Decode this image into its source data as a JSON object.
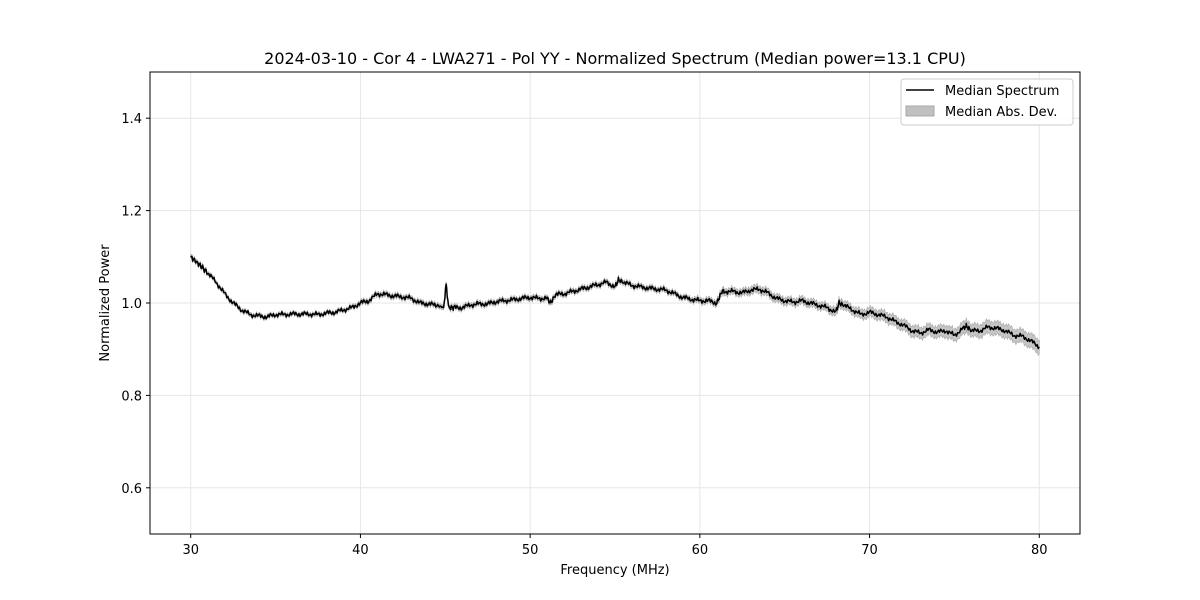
{
  "chart_data": {
    "type": "line",
    "title": "2024-03-10 - Cor 4 - LWA271 - Pol YY - Normalized Spectrum (Median power=13.1 CPU)",
    "xlabel": "Frequency (MHz)",
    "ylabel": "Normalized Power",
    "xlim": [
      27.6,
      82.4
    ],
    "ylim": [
      0.5,
      1.5
    ],
    "xticks": [
      30,
      40,
      50,
      60,
      70,
      80
    ],
    "xtick_labels": [
      "30",
      "40",
      "50",
      "60",
      "70",
      "80"
    ],
    "yticks": [
      0.6,
      0.8,
      1.0,
      1.2,
      1.4
    ],
    "ytick_labels": [
      "0.6",
      "0.8",
      "1.0",
      "1.2",
      "1.4"
    ],
    "grid": true,
    "legend": {
      "location": "top-right",
      "entries": [
        "Median Spectrum",
        "Median Abs. Dev."
      ]
    },
    "series": [
      {
        "name": "Median Spectrum",
        "color": "#000000",
        "x": [
          30,
          30.3,
          30.6,
          31,
          31.5,
          32,
          32.5,
          33,
          33.5,
          34,
          34.5,
          35,
          35.5,
          36,
          36.5,
          37,
          37.5,
          38,
          38.5,
          39,
          39.5,
          40,
          40.5,
          41,
          41.5,
          42,
          42.5,
          43,
          43.5,
          44,
          44.5,
          44.9,
          45.05,
          45.2,
          45.5,
          46,
          46.5,
          47,
          47.5,
          48,
          48.5,
          49,
          49.5,
          50,
          50.5,
          51,
          51.2,
          51.5,
          52,
          52.5,
          53,
          53.5,
          54,
          54.5,
          55,
          55.2,
          55.5,
          56,
          56.5,
          57,
          57.5,
          58,
          58.5,
          59,
          59.5,
          60,
          60.5,
          61,
          61.3,
          61.5,
          62,
          62.5,
          63,
          63.5,
          64,
          64.5,
          65,
          65.5,
          66,
          66.5,
          67,
          67.5,
          68,
          68.2,
          68.5,
          69,
          69.5,
          70,
          70.5,
          71,
          71.5,
          72,
          72.5,
          73,
          73.5,
          74,
          74.5,
          75,
          75.5,
          75.7,
          76,
          76.5,
          77,
          77.5,
          78,
          78.5,
          79,
          79.5,
          80
        ],
        "y": [
          1.1,
          1.09,
          1.08,
          1.065,
          1.045,
          1.02,
          1.0,
          0.985,
          0.975,
          0.972,
          0.97,
          0.975,
          0.975,
          0.976,
          0.976,
          0.976,
          0.975,
          0.978,
          0.98,
          0.985,
          0.99,
          1.0,
          1.005,
          1.02,
          1.018,
          1.015,
          1.013,
          1.01,
          1.0,
          0.998,
          0.995,
          0.99,
          1.04,
          0.99,
          0.99,
          0.99,
          0.996,
          0.998,
          0.998,
          1.003,
          1.005,
          1.007,
          1.01,
          1.012,
          1.01,
          1.01,
          1.0,
          1.018,
          1.02,
          1.025,
          1.03,
          1.035,
          1.04,
          1.045,
          1.035,
          1.05,
          1.045,
          1.038,
          1.035,
          1.032,
          1.03,
          1.028,
          1.02,
          1.012,
          1.008,
          1.005,
          1.005,
          1.0,
          1.025,
          1.025,
          1.025,
          1.022,
          1.028,
          1.03,
          1.022,
          1.01,
          1.005,
          1.002,
          1.005,
          1.0,
          0.995,
          0.99,
          0.98,
          1.0,
          0.995,
          0.985,
          0.975,
          0.98,
          0.975,
          0.97,
          0.96,
          0.952,
          0.94,
          0.935,
          0.942,
          0.937,
          0.94,
          0.93,
          0.945,
          0.95,
          0.94,
          0.94,
          0.948,
          0.945,
          0.94,
          0.93,
          0.928,
          0.918,
          0.905
        ],
        "mad": [
          0.004,
          0.004,
          0.004,
          0.004,
          0.004,
          0.004,
          0.004,
          0.004,
          0.004,
          0.004,
          0.004,
          0.004,
          0.004,
          0.004,
          0.004,
          0.004,
          0.004,
          0.004,
          0.004,
          0.004,
          0.004,
          0.005,
          0.005,
          0.005,
          0.005,
          0.005,
          0.005,
          0.005,
          0.005,
          0.005,
          0.005,
          0.005,
          0.005,
          0.005,
          0.005,
          0.005,
          0.005,
          0.005,
          0.005,
          0.005,
          0.005,
          0.005,
          0.005,
          0.005,
          0.005,
          0.005,
          0.005,
          0.005,
          0.005,
          0.005,
          0.005,
          0.005,
          0.005,
          0.005,
          0.005,
          0.005,
          0.005,
          0.005,
          0.005,
          0.005,
          0.005,
          0.005,
          0.005,
          0.005,
          0.005,
          0.006,
          0.006,
          0.006,
          0.007,
          0.007,
          0.007,
          0.007,
          0.008,
          0.008,
          0.008,
          0.008,
          0.008,
          0.008,
          0.008,
          0.008,
          0.008,
          0.008,
          0.009,
          0.009,
          0.009,
          0.009,
          0.01,
          0.01,
          0.01,
          0.011,
          0.011,
          0.011,
          0.012,
          0.012,
          0.012,
          0.012,
          0.013,
          0.013,
          0.013,
          0.013,
          0.013,
          0.014,
          0.014,
          0.014,
          0.014,
          0.014,
          0.014,
          0.015,
          0.015
        ]
      }
    ],
    "band": {
      "name": "Median Abs. Dev.",
      "color": "#c0c0c0"
    }
  }
}
